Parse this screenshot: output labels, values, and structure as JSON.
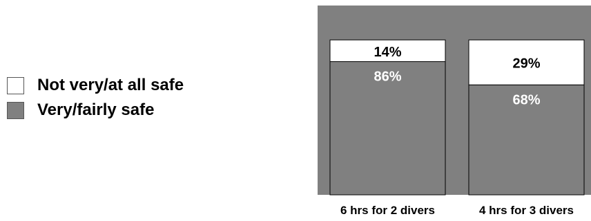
{
  "chart_data": {
    "type": "bar",
    "stacked": true,
    "percent_stacked": true,
    "categories": [
      "6 hrs for 2 divers",
      "4 hrs for 3 divers"
    ],
    "series": [
      {
        "name": "Very/fairly safe",
        "values": [
          86,
          68
        ],
        "labels": [
          "86%",
          "68%"
        ],
        "color": "#808080"
      },
      {
        "name": "Not very/at all safe",
        "values": [
          14,
          29
        ],
        "labels": [
          "14%",
          "29%"
        ],
        "color": "#ffffff"
      }
    ],
    "ylim": [
      0,
      100
    ],
    "plot_background": "#808080",
    "legend": {
      "placement": "left",
      "order": [
        "Not very/at all safe",
        "Very/fairly safe"
      ]
    },
    "grid": false
  }
}
